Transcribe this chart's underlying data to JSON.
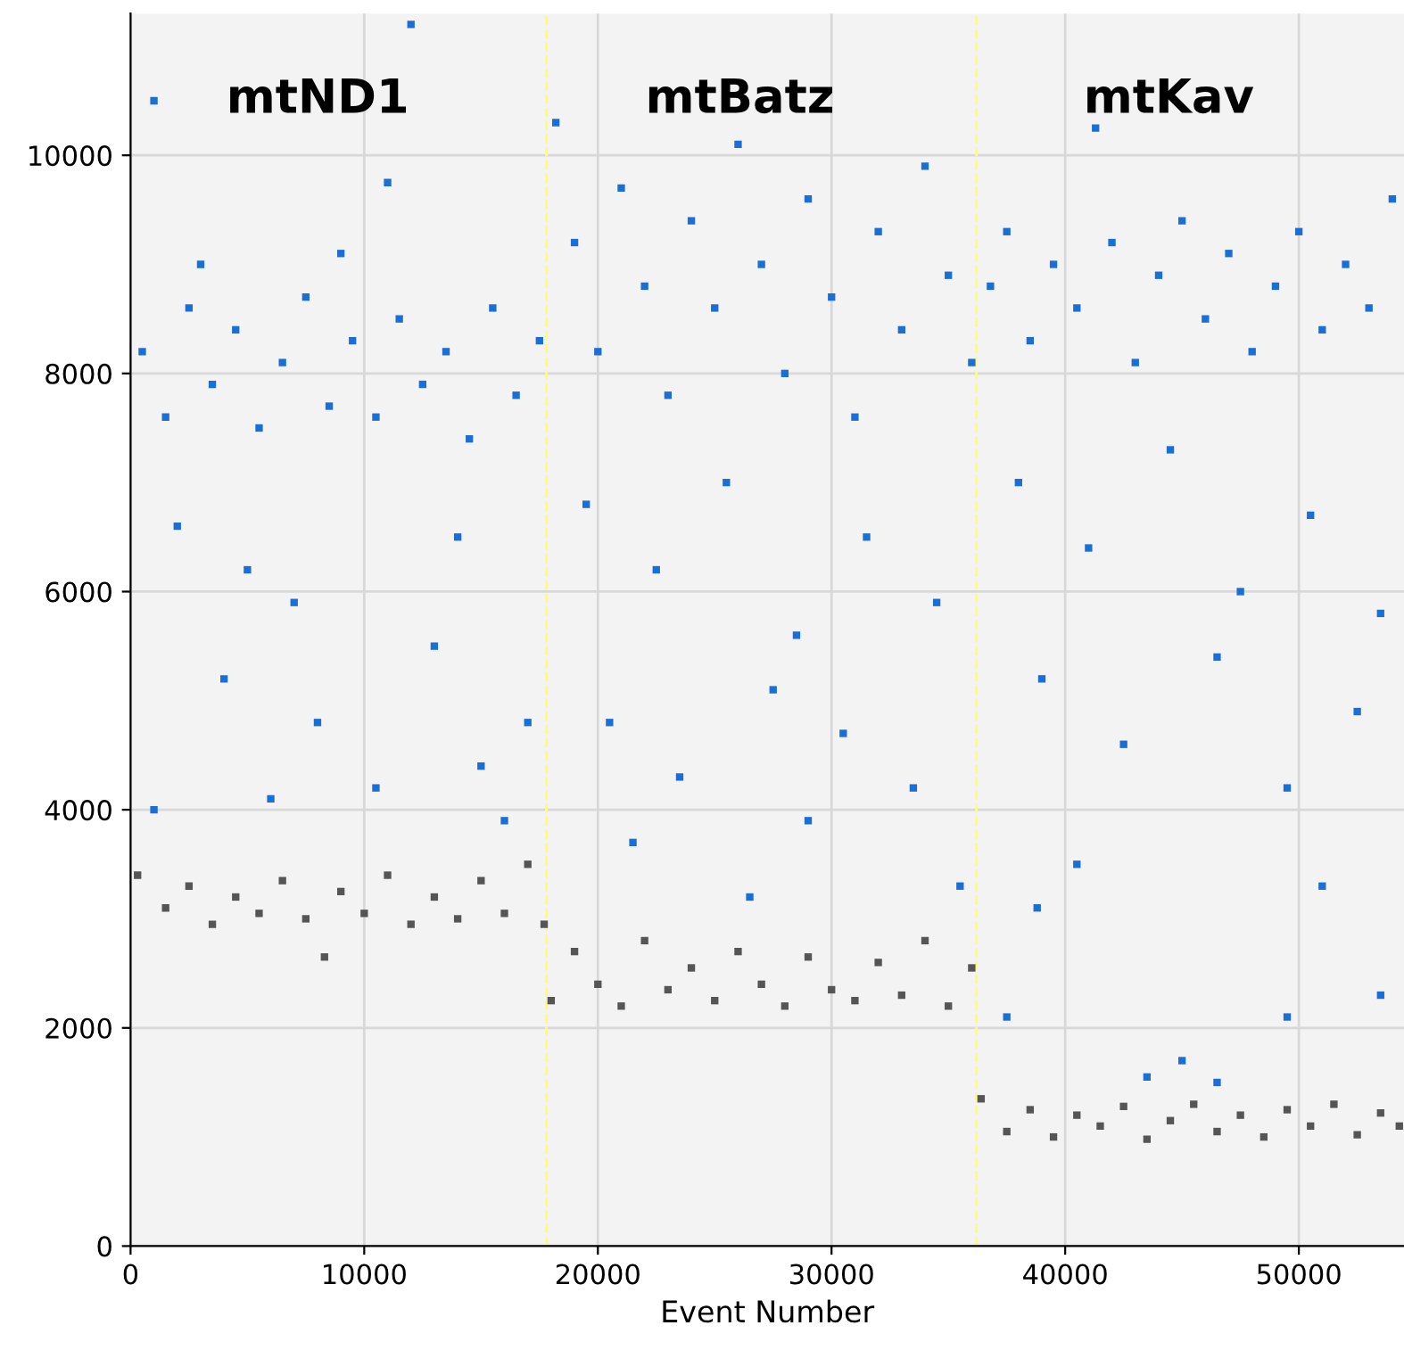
{
  "chart_data": {
    "type": "scatter",
    "xlabel": "Event Number",
    "xlim": [
      0,
      54500
    ],
    "ylim": [
      0,
      11300
    ],
    "xticks": [
      0,
      10000,
      20000,
      30000,
      40000,
      50000
    ],
    "yticks": [
      0,
      2000,
      4000,
      6000,
      8000,
      10000
    ],
    "grid": true,
    "marker": "square",
    "legend": false,
    "series": [
      {
        "color": "#1a6fd6",
        "x": [
          500,
          1500,
          2500,
          3500,
          4500,
          5500,
          6500,
          7500,
          8500,
          9500,
          10500,
          11500,
          12500,
          13500,
          14500,
          15500,
          16500,
          17500,
          1000,
          12000,
          11000,
          3000,
          9000,
          2000,
          5000,
          7000,
          14000,
          4000,
          8000,
          13000,
          15000,
          16000,
          1000,
          10500,
          17000,
          6000,
          18200,
          19000,
          20000,
          21000,
          22000,
          23000,
          24000,
          25000,
          26000,
          27000,
          28000,
          29000,
          30000,
          31000,
          32000,
          33000,
          34000,
          35000,
          36000,
          19500,
          22500,
          25500,
          28500,
          31500,
          34500,
          20500,
          23500,
          27500,
          30500,
          33500,
          35500,
          21500,
          26500,
          29000,
          36800,
          37500,
          38500,
          39500,
          40500,
          41300,
          42000,
          43000,
          44000,
          45000,
          46000,
          47000,
          48000,
          49000,
          50000,
          51000,
          52000,
          53000,
          54000,
          38000,
          41000,
          44500,
          47500,
          50500,
          53500,
          39000,
          42500,
          46500,
          49500,
          52500,
          37500,
          38800,
          40500,
          45000,
          46500,
          49500,
          51000,
          53500,
          43500
        ],
        "values": [
          8200,
          7600,
          8600,
          7900,
          8400,
          7500,
          8100,
          8700,
          7700,
          8300,
          7600,
          8500,
          7900,
          8200,
          7400,
          8600,
          7800,
          8300,
          10500,
          11200,
          9750,
          9000,
          9100,
          6600,
          6200,
          5900,
          6500,
          5200,
          4800,
          5500,
          4400,
          3900,
          4000,
          4200,
          4800,
          4100,
          10300,
          9200,
          8200,
          9700,
          8800,
          7800,
          9400,
          8600,
          10100,
          9000,
          8000,
          9600,
          8700,
          7600,
          9300,
          8400,
          9900,
          8900,
          8100,
          6800,
          6200,
          7000,
          5600,
          6500,
          5900,
          4800,
          4300,
          5100,
          4700,
          4200,
          3300,
          3700,
          3200,
          3900,
          8800,
          9300,
          8300,
          9000,
          8600,
          10250,
          9200,
          8100,
          8900,
          9400,
          8500,
          9100,
          8200,
          8800,
          9300,
          8400,
          9000,
          8600,
          9600,
          7000,
          6400,
          7300,
          6000,
          6700,
          5800,
          5200,
          4600,
          5400,
          4200,
          4900,
          2100,
          3100,
          3500,
          1700,
          1500,
          2100,
          3300,
          2300,
          1550
        ]
      },
      {
        "color": "#555555",
        "x": [
          300,
          1500,
          2500,
          3500,
          4500,
          5500,
          6500,
          7500,
          8300,
          9000,
          10000,
          11000,
          12000,
          13000,
          14000,
          15000,
          16000,
          17000,
          17700,
          18000,
          19000,
          20000,
          21000,
          22000,
          23000,
          24000,
          25000,
          26000,
          27000,
          28000,
          29000,
          30000,
          31000,
          32000,
          33000,
          34000,
          35000,
          36000,
          36400,
          37500,
          38500,
          39500,
          40500,
          41500,
          42500,
          43500,
          44500,
          45500,
          46500,
          47500,
          48500,
          49500,
          50500,
          51500,
          52500,
          53500,
          54300
        ],
        "values": [
          3400,
          3100,
          3300,
          2950,
          3200,
          3050,
          3350,
          3000,
          2650,
          3250,
          3050,
          3400,
          2950,
          3200,
          3000,
          3350,
          3050,
          3500,
          2950,
          2250,
          2700,
          2400,
          2200,
          2800,
          2350,
          2550,
          2250,
          2700,
          2400,
          2200,
          2650,
          2350,
          2250,
          2600,
          2300,
          2800,
          2200,
          2550,
          1350,
          1050,
          1250,
          1000,
          1200,
          1100,
          1280,
          980,
          1150,
          1300,
          1050,
          1200,
          1000,
          1250,
          1100,
          1300,
          1020,
          1220,
          1100
        ]
      }
    ],
    "ref_lines": [
      {
        "axis": "x",
        "value": 17800,
        "color": "#ffff66",
        "line_style": "dashed"
      },
      {
        "axis": "x",
        "value": 36200,
        "color": "#ffff66",
        "line_style": "dashed"
      }
    ],
    "annotations": [
      "mtND1",
      "mtBatz",
      "mtKav"
    ]
  }
}
